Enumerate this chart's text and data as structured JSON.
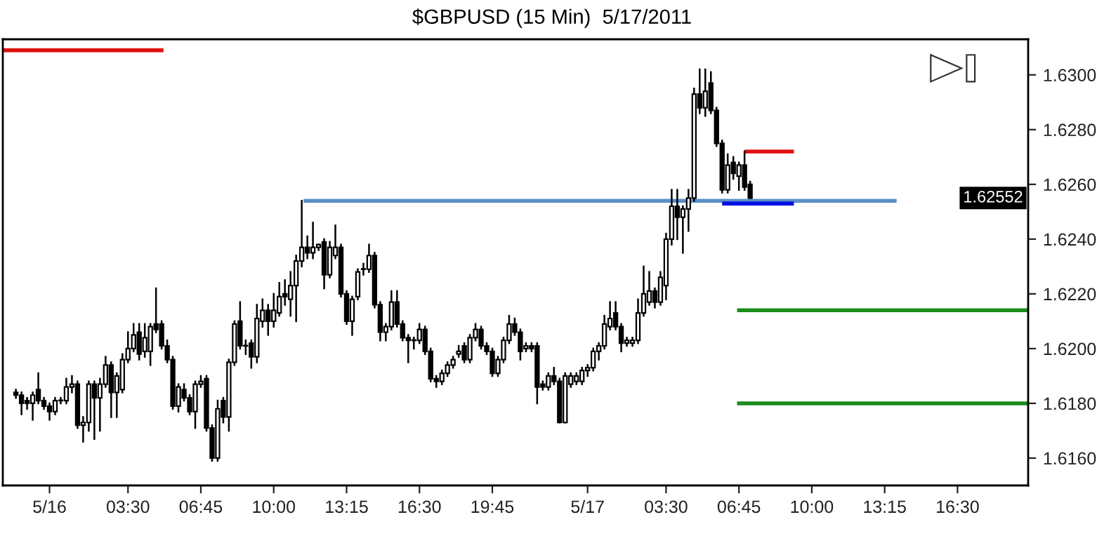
{
  "chart_data": {
    "type": "candlestick",
    "title": "$GBPUSD (15 Min)  5/17/2011",
    "x": [
      "2011-05-15T22:30",
      "2011-05-15T22:45",
      "2011-05-15T23:00",
      "2011-05-15T23:15",
      "2011-05-15T23:30",
      "2011-05-15T23:45",
      "2011-05-16T00:00",
      "2011-05-16T00:15",
      "2011-05-16T00:30",
      "2011-05-16T00:45",
      "2011-05-16T01:00",
      "2011-05-16T01:15",
      "2011-05-16T01:30",
      "2011-05-16T01:45",
      "2011-05-16T02:00",
      "2011-05-16T02:15",
      "2011-05-16T02:30",
      "2011-05-16T02:45",
      "2011-05-16T03:00",
      "2011-05-16T03:15",
      "2011-05-16T03:30",
      "2011-05-16T03:45",
      "2011-05-16T04:00",
      "2011-05-16T04:15",
      "2011-05-16T04:30",
      "2011-05-16T04:45",
      "2011-05-16T05:00",
      "2011-05-16T05:15",
      "2011-05-16T05:30",
      "2011-05-16T05:45",
      "2011-05-16T06:00",
      "2011-05-16T06:15",
      "2011-05-16T06:30",
      "2011-05-16T06:45",
      "2011-05-16T07:00",
      "2011-05-16T07:15",
      "2011-05-16T07:30",
      "2011-05-16T07:45",
      "2011-05-16T08:00",
      "2011-05-16T08:15",
      "2011-05-16T08:30",
      "2011-05-16T08:45",
      "2011-05-16T09:00",
      "2011-05-16T09:15",
      "2011-05-16T09:30",
      "2011-05-16T09:45",
      "2011-05-16T10:00",
      "2011-05-16T10:15",
      "2011-05-16T10:30",
      "2011-05-16T10:45",
      "2011-05-16T11:00",
      "2011-05-16T11:15",
      "2011-05-16T11:30",
      "2011-05-16T11:45",
      "2011-05-16T12:00",
      "2011-05-16T12:15",
      "2011-05-16T12:30",
      "2011-05-16T12:45",
      "2011-05-16T13:00",
      "2011-05-16T13:15",
      "2011-05-16T13:30",
      "2011-05-16T13:45",
      "2011-05-16T14:00",
      "2011-05-16T14:15",
      "2011-05-16T14:30",
      "2011-05-16T14:45",
      "2011-05-16T15:00",
      "2011-05-16T15:15",
      "2011-05-16T15:30",
      "2011-05-16T15:45",
      "2011-05-16T16:00",
      "2011-05-16T16:15",
      "2011-05-16T16:30",
      "2011-05-16T16:45",
      "2011-05-16T17:00",
      "2011-05-16T17:15",
      "2011-05-16T17:30",
      "2011-05-16T17:45",
      "2011-05-16T18:00",
      "2011-05-16T18:15",
      "2011-05-16T18:30",
      "2011-05-16T18:45",
      "2011-05-16T19:00",
      "2011-05-16T19:15",
      "2011-05-16T19:30",
      "2011-05-16T19:45",
      "2011-05-16T20:00",
      "2011-05-16T20:15",
      "2011-05-16T20:30",
      "2011-05-16T20:45",
      "2011-05-16T21:00",
      "2011-05-16T21:15",
      "2011-05-16T21:30",
      "2011-05-16T21:45",
      "2011-05-16T22:00",
      "2011-05-16T22:15",
      "2011-05-16T22:30",
      "2011-05-16T22:45",
      "2011-05-16T23:00",
      "2011-05-16T23:15",
      "2011-05-16T23:30",
      "2011-05-16T23:45",
      "2011-05-17T00:00",
      "2011-05-17T00:15",
      "2011-05-17T00:30",
      "2011-05-17T00:45",
      "2011-05-17T01:00",
      "2011-05-17T01:15",
      "2011-05-17T01:30",
      "2011-05-17T01:45",
      "2011-05-17T02:00",
      "2011-05-17T02:15",
      "2011-05-17T02:30",
      "2011-05-17T02:45",
      "2011-05-17T03:00",
      "2011-05-17T03:15",
      "2011-05-17T03:30",
      "2011-05-17T03:45",
      "2011-05-17T04:00",
      "2011-05-17T04:15",
      "2011-05-17T04:30",
      "2011-05-17T04:45",
      "2011-05-17T05:00",
      "2011-05-17T05:15",
      "2011-05-17T05:30",
      "2011-05-17T05:45",
      "2011-05-17T06:00",
      "2011-05-17T06:15",
      "2011-05-17T06:30",
      "2011-05-17T06:45",
      "2011-05-17T07:00",
      "2011-05-17T07:15"
    ],
    "ohlc": [
      [
        1.6184,
        1.6185,
        1.6182,
        1.6183
      ],
      [
        1.6183,
        1.6184,
        1.6176,
        1.618
      ],
      [
        1.6181,
        1.6182,
        1.6178,
        1.618
      ],
      [
        1.618,
        1.6184,
        1.6174,
        1.6183
      ],
      [
        1.6185,
        1.6191,
        1.618,
        1.6181
      ],
      [
        1.6181,
        1.6182,
        1.6178,
        1.6179
      ],
      [
        1.6179,
        1.618,
        1.6174,
        1.6177
      ],
      [
        1.6177,
        1.6182,
        1.6176,
        1.6181
      ],
      [
        1.6181,
        1.6182,
        1.618,
        1.6181
      ],
      [
        1.6181,
        1.6189,
        1.618,
        1.6186
      ],
      [
        1.6186,
        1.619,
        1.6184,
        1.6187
      ],
      [
        1.6187,
        1.6188,
        1.6171,
        1.6172
      ],
      [
        1.6172,
        1.6175,
        1.6166,
        1.6173
      ],
      [
        1.6173,
        1.6188,
        1.617,
        1.6187
      ],
      [
        1.6187,
        1.6188,
        1.6167,
        1.6182
      ],
      [
        1.6182,
        1.6189,
        1.617,
        1.6187
      ],
      [
        1.6187,
        1.6197,
        1.6186,
        1.6194
      ],
      [
        1.6194,
        1.6195,
        1.6175,
        1.6184
      ],
      [
        1.6184,
        1.6191,
        1.6175,
        1.619
      ],
      [
        1.6185,
        1.6198,
        1.6184,
        1.6196
      ],
      [
        1.6196,
        1.6206,
        1.6195,
        1.62
      ],
      [
        1.62,
        1.6209,
        1.6199,
        1.6205
      ],
      [
        1.6206,
        1.6209,
        1.6196,
        1.6198
      ],
      [
        1.6199,
        1.6209,
        1.6197,
        1.6204
      ],
      [
        1.6199,
        1.6209,
        1.6194,
        1.6208
      ],
      [
        1.6209,
        1.6222,
        1.6206,
        1.6207
      ],
      [
        1.6209,
        1.621,
        1.62,
        1.6201
      ],
      [
        1.6201,
        1.6203,
        1.6195,
        1.6196
      ],
      [
        1.6196,
        1.6197,
        1.6178,
        1.6179
      ],
      [
        1.6179,
        1.6187,
        1.6177,
        1.6186
      ],
      [
        1.6185,
        1.6187,
        1.6181,
        1.6182
      ],
      [
        1.6182,
        1.6183,
        1.6176,
        1.6177
      ],
      [
        1.6177,
        1.6188,
        1.6171,
        1.6187
      ],
      [
        1.6187,
        1.619,
        1.6186,
        1.6188
      ],
      [
        1.6189,
        1.619,
        1.617,
        1.6171
      ],
      [
        1.6171,
        1.6172,
        1.6159,
        1.616
      ],
      [
        1.616,
        1.6181,
        1.6159,
        1.6178
      ],
      [
        1.6181,
        1.6182,
        1.6173,
        1.6175
      ],
      [
        1.6175,
        1.6196,
        1.617,
        1.6195
      ],
      [
        1.6195,
        1.621,
        1.6194,
        1.6209
      ],
      [
        1.621,
        1.6217,
        1.62,
        1.6201
      ],
      [
        1.6201,
        1.6203,
        1.6198,
        1.6201
      ],
      [
        1.6202,
        1.6203,
        1.6193,
        1.6197
      ],
      [
        1.6197,
        1.6216,
        1.6195,
        1.6211
      ],
      [
        1.621,
        1.6218,
        1.6208,
        1.6214
      ],
      [
        1.6214,
        1.6216,
        1.6205,
        1.621
      ],
      [
        1.621,
        1.622,
        1.6208,
        1.6214
      ],
      [
        1.6213,
        1.6224,
        1.6212,
        1.6219
      ],
      [
        1.622,
        1.6225,
        1.6216,
        1.6219
      ],
      [
        1.6218,
        1.6228,
        1.6212,
        1.6223
      ],
      [
        1.6223,
        1.6234,
        1.621,
        1.6232
      ],
      [
        1.6232,
        1.6254,
        1.623,
        1.6237
      ],
      [
        1.6237,
        1.6241,
        1.6233,
        1.6235
      ],
      [
        1.6235,
        1.6246,
        1.6233,
        1.6237
      ],
      [
        1.6237,
        1.6238,
        1.6236,
        1.6238
      ],
      [
        1.6239,
        1.624,
        1.6222,
        1.6227
      ],
      [
        1.6227,
        1.6239,
        1.6226,
        1.6237
      ],
      [
        1.6234,
        1.6245,
        1.6233,
        1.6237
      ],
      [
        1.6237,
        1.6238,
        1.6219,
        1.622
      ],
      [
        1.622,
        1.6221,
        1.6209,
        1.621
      ],
      [
        1.621,
        1.6219,
        1.6205,
        1.6218
      ],
      [
        1.6219,
        1.6229,
        1.6218,
        1.6228
      ],
      [
        1.6229,
        1.6231,
        1.6227,
        1.6229
      ],
      [
        1.6229,
        1.6238,
        1.6228,
        1.6234
      ],
      [
        1.6234,
        1.6235,
        1.6215,
        1.6216
      ],
      [
        1.6216,
        1.6217,
        1.6203,
        1.6206
      ],
      [
        1.6206,
        1.6209,
        1.6203,
        1.6208
      ],
      [
        1.6208,
        1.6221,
        1.6207,
        1.6217
      ],
      [
        1.6217,
        1.6221,
        1.6208,
        1.6209
      ],
      [
        1.6209,
        1.621,
        1.6203,
        1.6204
      ],
      [
        1.6204,
        1.6205,
        1.6195,
        1.6203
      ],
      [
        1.6203,
        1.6204,
        1.62,
        1.6203
      ],
      [
        1.6203,
        1.6209,
        1.6202,
        1.6207
      ],
      [
        1.6207,
        1.6208,
        1.6198,
        1.6199
      ],
      [
        1.6199,
        1.62,
        1.6188,
        1.6189
      ],
      [
        1.6189,
        1.619,
        1.6186,
        1.6188
      ],
      [
        1.6188,
        1.6192,
        1.6187,
        1.6191
      ],
      [
        1.6191,
        1.6195,
        1.619,
        1.6194
      ],
      [
        1.6194,
        1.6197,
        1.6193,
        1.6196
      ],
      [
        1.6198,
        1.6201,
        1.6197,
        1.6199
      ],
      [
        1.6201,
        1.6202,
        1.6195,
        1.6196
      ],
      [
        1.6196,
        1.6205,
        1.6195,
        1.6204
      ],
      [
        1.6204,
        1.6209,
        1.6203,
        1.6207
      ],
      [
        1.6207,
        1.6208,
        1.62,
        1.6201
      ],
      [
        1.6201,
        1.6202,
        1.6198,
        1.6199
      ],
      [
        1.6199,
        1.62,
        1.619,
        1.6191
      ],
      [
        1.6191,
        1.6197,
        1.619,
        1.6196
      ],
      [
        1.6196,
        1.6204,
        1.6195,
        1.6203
      ],
      [
        1.6203,
        1.6212,
        1.6202,
        1.6209
      ],
      [
        1.6209,
        1.6211,
        1.6205,
        1.6206
      ],
      [
        1.6206,
        1.6207,
        1.6196,
        1.6199
      ],
      [
        1.62,
        1.6202,
        1.6199,
        1.6201
      ],
      [
        1.6201,
        1.6202,
        1.6199,
        1.62
      ],
      [
        1.6201,
        1.6202,
        1.618,
        1.6186
      ],
      [
        1.6187,
        1.6188,
        1.6185,
        1.6186
      ],
      [
        1.6186,
        1.6191,
        1.6185,
        1.619
      ],
      [
        1.619,
        1.6193,
        1.6187,
        1.6188
      ],
      [
        1.6188,
        1.6189,
        1.6173,
        1.6173
      ],
      [
        1.6173,
        1.6191,
        1.6173,
        1.619
      ],
      [
        1.6187,
        1.6191,
        1.6186,
        1.619
      ],
      [
        1.6188,
        1.6191,
        1.6187,
        1.619
      ],
      [
        1.6188,
        1.6193,
        1.6187,
        1.6192
      ],
      [
        1.6192,
        1.6194,
        1.619,
        1.6193
      ],
      [
        1.6193,
        1.62,
        1.6192,
        1.6199
      ],
      [
        1.6199,
        1.6202,
        1.6196,
        1.6201
      ],
      [
        1.6201,
        1.6212,
        1.62,
        1.6209
      ],
      [
        1.6208,
        1.6217,
        1.6207,
        1.6211
      ],
      [
        1.6213,
        1.6217,
        1.6207,
        1.6208
      ],
      [
        1.6208,
        1.6209,
        1.6199,
        1.6202
      ],
      [
        1.6202,
        1.6204,
        1.6201,
        1.6203
      ],
      [
        1.6202,
        1.6204,
        1.6201,
        1.6203
      ],
      [
        1.6203,
        1.6218,
        1.6202,
        1.6213
      ],
      [
        1.6213,
        1.623,
        1.6212,
        1.622
      ],
      [
        1.6217,
        1.6228,
        1.6216,
        1.6221
      ],
      [
        1.6221,
        1.6222,
        1.6215,
        1.6217
      ],
      [
        1.6217,
        1.6228,
        1.6216,
        1.6226
      ],
      [
        1.6223,
        1.6242,
        1.6218,
        1.624
      ],
      [
        1.624,
        1.6258,
        1.6238,
        1.6252
      ],
      [
        1.6252,
        1.6258,
        1.624,
        1.6248
      ],
      [
        1.6248,
        1.6252,
        1.6235,
        1.6251
      ],
      [
        1.6251,
        1.6258,
        1.6243,
        1.6255
      ],
      [
        1.6255,
        1.6295,
        1.6254,
        1.6293
      ],
      [
        1.6293,
        1.6302,
        1.6286,
        1.6288
      ],
      [
        1.6288,
        1.6302,
        1.6285,
        1.6294
      ],
      [
        1.6297,
        1.6301,
        1.6286,
        1.6287
      ],
      [
        1.6287,
        1.6288,
        1.6274,
        1.6275
      ],
      [
        1.6275,
        1.6276,
        1.6257,
        1.6258
      ],
      [
        1.6258,
        1.6271,
        1.6257,
        1.6267
      ],
      [
        1.6268,
        1.627,
        1.6262,
        1.6264
      ],
      [
        1.6263,
        1.6268,
        1.6258,
        1.6267
      ],
      [
        1.6267,
        1.6272,
        1.6258,
        1.6259
      ],
      [
        1.626,
        1.6261,
        1.6255,
        1.6255
      ]
    ],
    "series": [
      {
        "type": "line",
        "color": "#e01010",
        "x": [
          "2011-05-15T21:55",
          "2011-05-16T05:05"
        ],
        "values": [
          1.6309,
          1.6309
        ]
      },
      {
        "type": "line",
        "color": "#5b8fc7",
        "x": [
          "2011-05-16T11:20",
          "2011-05-17T13:47"
        ],
        "values": [
          1.6254,
          1.6254
        ]
      },
      {
        "type": "line",
        "color": "#e01010",
        "x": [
          "2011-05-17T07:00",
          "2011-05-17T09:12"
        ],
        "values": [
          1.6272,
          1.6272
        ]
      },
      {
        "type": "line",
        "color": "#0010e0",
        "x": [
          "2011-05-17T06:00",
          "2011-05-17T09:12"
        ],
        "values": [
          1.6253,
          1.6253
        ]
      },
      {
        "type": "line",
        "color": "#1a8c1a",
        "x": [
          "2011-05-17T06:40",
          "2011-05-17T19:39"
        ],
        "values": [
          1.6214,
          1.6214
        ]
      },
      {
        "type": "line",
        "color": "#1a8c1a",
        "x": [
          "2011-05-17T06:40",
          "2011-05-17T19:39"
        ],
        "values": [
          1.618,
          1.618
        ]
      }
    ],
    "annotations": [
      "1.62552"
    ],
    "xlim": [
      "2011-05-15T21:55",
      "2011-05-17T19:39"
    ],
    "xticks": [
      {
        "value": "2011-05-16T00:00",
        "label": "5/16"
      },
      {
        "value": "2011-05-16T03:30",
        "label": "03:30"
      },
      {
        "value": "2011-05-16T06:45",
        "label": "06:45"
      },
      {
        "value": "2011-05-16T10:00",
        "label": "10:00"
      },
      {
        "value": "2011-05-16T13:15",
        "label": "13:15"
      },
      {
        "value": "2011-05-16T16:30",
        "label": "16:30"
      },
      {
        "value": "2011-05-16T19:45",
        "label": "19:45"
      },
      {
        "value": "2011-05-17T00:00",
        "label": "5/17"
      },
      {
        "value": "2011-05-17T03:30",
        "label": "03:30"
      },
      {
        "value": "2011-05-17T06:45",
        "label": "06:45"
      },
      {
        "value": "2011-05-17T10:00",
        "label": "10:00"
      },
      {
        "value": "2011-05-17T13:15",
        "label": "13:15"
      },
      {
        "value": "2011-05-17T16:30",
        "label": "16:30"
      }
    ],
    "ylim": [
      1.615,
      1.6313
    ],
    "yticks": [
      {
        "value": 1.616,
        "label": "1.6160"
      },
      {
        "value": 1.618,
        "label": "1.6180"
      },
      {
        "value": 1.62,
        "label": "1.6200"
      },
      {
        "value": 1.622,
        "label": "1.6220"
      },
      {
        "value": 1.624,
        "label": "1.6240"
      },
      {
        "value": 1.626,
        "label": "1.6260"
      },
      {
        "value": 1.628,
        "label": "1.6280"
      },
      {
        "value": 1.63,
        "label": "1.6300"
      }
    ],
    "grid": false,
    "legend": false
  }
}
